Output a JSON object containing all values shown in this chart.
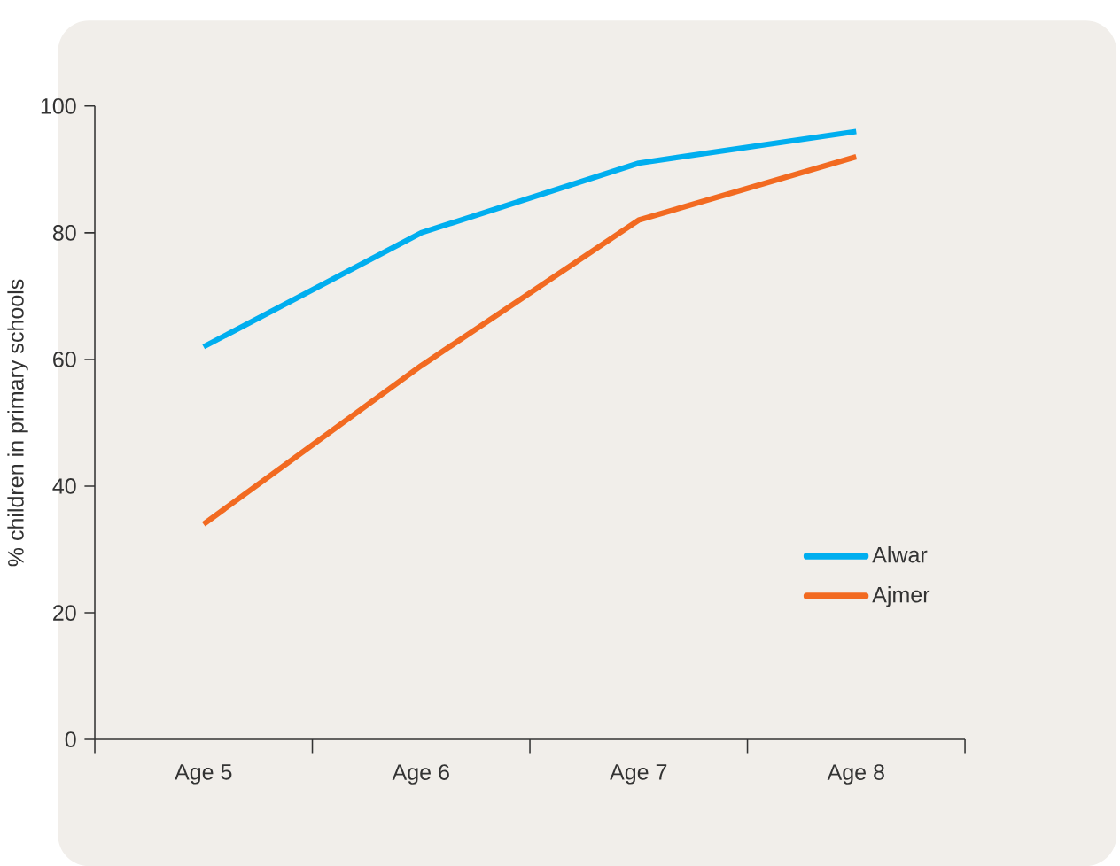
{
  "chart_data": {
    "type": "line",
    "ylabel": "% children in primary schools",
    "categories": [
      "Age 5",
      "Age 6",
      "Age 7",
      "Age 8"
    ],
    "series": [
      {
        "name": "Alwar",
        "color": "#00aeef",
        "values": [
          62,
          80,
          91,
          96
        ]
      },
      {
        "name": "Ajmer",
        "color": "#f26a21",
        "values": [
          34,
          59,
          82,
          92
        ]
      }
    ],
    "ylim": [
      0,
      100
    ],
    "yticks": [
      0,
      20,
      40,
      60,
      80,
      100
    ],
    "grid": false,
    "legend": "bottom right",
    "marker": "none",
    "line_style": "solid"
  }
}
